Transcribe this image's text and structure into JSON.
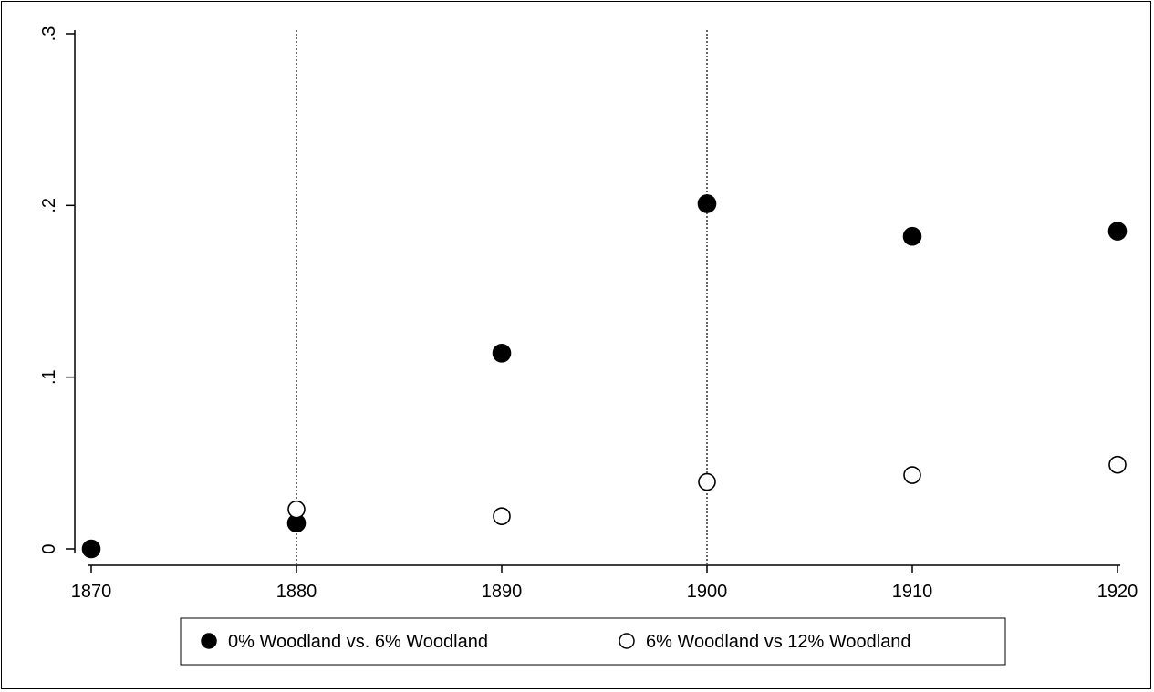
{
  "chart_data": {
    "type": "scatter",
    "title": "",
    "xlabel": "",
    "ylabel": "",
    "xlim": [
      1870,
      1920
    ],
    "ylim": [
      0,
      0.3
    ],
    "x_ticks": [
      1870,
      1880,
      1890,
      1900,
      1910,
      1920
    ],
    "x_tick_labels": [
      "1870",
      "1880",
      "1890",
      "1900",
      "1910",
      "1920"
    ],
    "y_ticks": [
      0,
      0.1,
      0.2,
      0.3
    ],
    "y_tick_labels": [
      "0",
      ".1",
      ".2",
      ".3"
    ],
    "reference_lines_x": [
      1880,
      1900
    ],
    "grid": false,
    "legend_position": "bottom",
    "series": [
      {
        "name": "0% Woodland vs. 6% Woodland",
        "marker": "filled-circle",
        "color": "#000000",
        "x": [
          1870,
          1880,
          1890,
          1900,
          1910,
          1920
        ],
        "y": [
          0.0,
          0.015,
          0.114,
          0.201,
          0.182,
          0.185
        ]
      },
      {
        "name": "6% Woodland vs 12% Woodland",
        "marker": "hollow-circle",
        "color": "#000000",
        "x": [
          1880,
          1890,
          1900,
          1910,
          1920
        ],
        "y": [
          0.023,
          0.019,
          0.039,
          0.043,
          0.049
        ]
      }
    ]
  }
}
